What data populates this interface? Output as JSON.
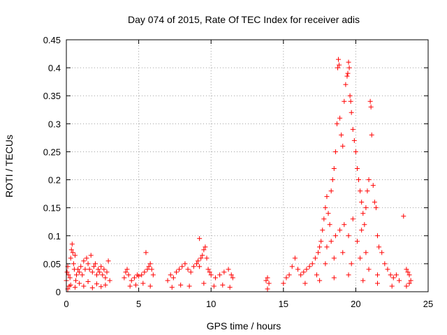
{
  "chart_data": {
    "type": "scatter",
    "title": "Day 074 of 2015, Rate Of TEC Index for receiver adis",
    "xlabel": "GPS time / hours",
    "ylabel": "ROTI / TECUs",
    "xlim": [
      0,
      25
    ],
    "ylim": [
      0,
      0.45
    ],
    "xticks": [
      0,
      5,
      10,
      15,
      20,
      25
    ],
    "xtick_labels": [
      "0",
      "5",
      "10",
      "15",
      "20",
      "25"
    ],
    "yticks": [
      0,
      0.05,
      0.1,
      0.15,
      0.2,
      0.25,
      0.3,
      0.35,
      0.4,
      0.45
    ],
    "ytick_labels": [
      "0",
      "0.05",
      "0.1",
      "0.15",
      "0.2",
      "0.25",
      "0.3",
      "0.35",
      "0.4",
      "0.45"
    ],
    "grid": true,
    "marker": "+",
    "marker_color": "#ff0000",
    "series": [
      {
        "name": "ROTI",
        "points": [
          [
            0.0,
            0.02
          ],
          [
            0.05,
            0.035
          ],
          [
            0.1,
            0.045
          ],
          [
            0.15,
            0.03
          ],
          [
            0.2,
            0.01
          ],
          [
            0.25,
            0.025
          ],
          [
            0.3,
            0.06
          ],
          [
            0.35,
            0.075
          ],
          [
            0.4,
            0.085
          ],
          [
            0.45,
            0.07
          ],
          [
            0.5,
            0.05
          ],
          [
            0.55,
            0.04
          ],
          [
            0.6,
            0.065
          ],
          [
            0.65,
            0.02
          ],
          [
            0.7,
            0.03
          ],
          [
            0.8,
            0.04
          ],
          [
            0.9,
            0.035
          ],
          [
            1.0,
            0.045
          ],
          [
            1.1,
            0.03
          ],
          [
            1.2,
            0.055
          ],
          [
            1.3,
            0.04
          ],
          [
            1.4,
            0.06
          ],
          [
            1.5,
            0.05
          ],
          [
            1.6,
            0.04
          ],
          [
            1.7,
            0.065
          ],
          [
            1.8,
            0.035
          ],
          [
            1.9,
            0.045
          ],
          [
            2.0,
            0.05
          ],
          [
            2.1,
            0.03
          ],
          [
            2.2,
            0.04
          ],
          [
            2.3,
            0.035
          ],
          [
            2.4,
            0.045
          ],
          [
            2.5,
            0.03
          ],
          [
            2.6,
            0.04
          ],
          [
            2.7,
            0.025
          ],
          [
            2.8,
            0.035
          ],
          [
            2.9,
            0.055
          ],
          [
            3.0,
            0.02
          ],
          [
            0.1,
            0.005
          ],
          [
            0.3,
            0.012
          ],
          [
            0.6,
            0.008
          ],
          [
            0.9,
            0.015
          ],
          [
            1.2,
            0.01
          ],
          [
            1.5,
            0.018
          ],
          [
            1.8,
            0.007
          ],
          [
            2.1,
            0.014
          ],
          [
            2.4,
            0.009
          ],
          [
            2.7,
            0.012
          ],
          [
            4.0,
            0.025
          ],
          [
            4.1,
            0.035
          ],
          [
            4.2,
            0.04
          ],
          [
            4.3,
            0.03
          ],
          [
            4.5,
            0.02
          ],
          [
            4.7,
            0.025
          ],
          [
            4.9,
            0.03
          ],
          [
            5.0,
            0.028
          ],
          [
            5.2,
            0.03
          ],
          [
            5.4,
            0.035
          ],
          [
            5.5,
            0.07
          ],
          [
            5.6,
            0.04
          ],
          [
            5.7,
            0.045
          ],
          [
            5.8,
            0.05
          ],
          [
            5.9,
            0.04
          ],
          [
            6.0,
            0.03
          ],
          [
            4.4,
            0.01
          ],
          [
            4.8,
            0.012
          ],
          [
            5.3,
            0.015
          ],
          [
            5.8,
            0.01
          ],
          [
            7.0,
            0.02
          ],
          [
            7.2,
            0.03
          ],
          [
            7.4,
            0.025
          ],
          [
            7.6,
            0.035
          ],
          [
            7.8,
            0.04
          ],
          [
            8.0,
            0.045
          ],
          [
            8.2,
            0.05
          ],
          [
            8.4,
            0.04
          ],
          [
            8.6,
            0.035
          ],
          [
            8.8,
            0.045
          ],
          [
            9.0,
            0.05
          ],
          [
            9.1,
            0.055
          ],
          [
            9.2,
            0.045
          ],
          [
            9.3,
            0.06
          ],
          [
            9.4,
            0.065
          ],
          [
            9.5,
            0.075
          ],
          [
            9.6,
            0.08
          ],
          [
            9.7,
            0.06
          ],
          [
            9.8,
            0.04
          ],
          [
            9.9,
            0.035
          ],
          [
            9.2,
            0.095
          ],
          [
            10.0,
            0.03
          ],
          [
            10.3,
            0.025
          ],
          [
            10.6,
            0.03
          ],
          [
            10.9,
            0.035
          ],
          [
            11.2,
            0.04
          ],
          [
            11.4,
            0.03
          ],
          [
            11.5,
            0.025
          ],
          [
            7.3,
            0.008
          ],
          [
            7.9,
            0.012
          ],
          [
            8.5,
            0.01
          ],
          [
            9.5,
            0.015
          ],
          [
            10.2,
            0.01
          ],
          [
            10.8,
            0.012
          ],
          [
            11.3,
            0.008
          ],
          [
            13.8,
            0.02
          ],
          [
            13.9,
            0.025
          ],
          [
            14.0,
            0.015
          ],
          [
            13.9,
            0.005
          ],
          [
            15.0,
            0.015
          ],
          [
            15.2,
            0.025
          ],
          [
            15.4,
            0.03
          ],
          [
            15.6,
            0.045
          ],
          [
            15.8,
            0.06
          ],
          [
            16.0,
            0.04
          ],
          [
            16.2,
            0.03
          ],
          [
            16.4,
            0.035
          ],
          [
            16.6,
            0.04
          ],
          [
            16.8,
            0.045
          ],
          [
            17.0,
            0.05
          ],
          [
            17.2,
            0.06
          ],
          [
            17.4,
            0.07
          ],
          [
            17.5,
            0.08
          ],
          [
            17.6,
            0.09
          ],
          [
            17.7,
            0.11
          ],
          [
            17.8,
            0.13
          ],
          [
            17.9,
            0.15
          ],
          [
            18.0,
            0.17
          ],
          [
            18.1,
            0.14
          ],
          [
            18.2,
            0.12
          ],
          [
            18.3,
            0.18
          ],
          [
            18.4,
            0.2
          ],
          [
            18.5,
            0.22
          ],
          [
            18.6,
            0.25
          ],
          [
            18.7,
            0.3
          ],
          [
            18.75,
            0.4
          ],
          [
            18.8,
            0.415
          ],
          [
            18.85,
            0.405
          ],
          [
            18.9,
            0.31
          ],
          [
            19.0,
            0.28
          ],
          [
            19.1,
            0.26
          ],
          [
            19.2,
            0.34
          ],
          [
            19.3,
            0.37
          ],
          [
            19.4,
            0.385
          ],
          [
            19.45,
            0.39
          ],
          [
            19.5,
            0.41
          ],
          [
            19.55,
            0.4
          ],
          [
            19.6,
            0.35
          ],
          [
            19.65,
            0.34
          ],
          [
            19.7,
            0.32
          ],
          [
            19.8,
            0.29
          ],
          [
            19.9,
            0.27
          ],
          [
            20.0,
            0.25
          ],
          [
            20.1,
            0.22
          ],
          [
            20.2,
            0.2
          ],
          [
            20.3,
            0.18
          ],
          [
            20.4,
            0.16
          ],
          [
            20.5,
            0.14
          ],
          [
            20.6,
            0.12
          ],
          [
            20.7,
            0.15
          ],
          [
            20.8,
            0.18
          ],
          [
            20.9,
            0.2
          ],
          [
            21.0,
            0.34
          ],
          [
            21.05,
            0.33
          ],
          [
            21.1,
            0.28
          ],
          [
            21.2,
            0.19
          ],
          [
            21.3,
            0.16
          ],
          [
            21.4,
            0.15
          ],
          [
            21.5,
            0.1
          ],
          [
            21.6,
            0.08
          ],
          [
            21.8,
            0.07
          ],
          [
            22.0,
            0.05
          ],
          [
            22.2,
            0.04
          ],
          [
            22.4,
            0.03
          ],
          [
            22.6,
            0.025
          ],
          [
            22.8,
            0.03
          ],
          [
            23.0,
            0.02
          ],
          [
            18.0,
            0.08
          ],
          [
            18.3,
            0.09
          ],
          [
            18.6,
            0.1
          ],
          [
            18.9,
            0.11
          ],
          [
            19.2,
            0.12
          ],
          [
            19.5,
            0.1
          ],
          [
            19.8,
            0.13
          ],
          [
            20.1,
            0.09
          ],
          [
            20.4,
            0.11
          ],
          [
            20.7,
            0.07
          ],
          [
            17.3,
            0.03
          ],
          [
            17.9,
            0.05
          ],
          [
            18.5,
            0.06
          ],
          [
            19.1,
            0.07
          ],
          [
            19.7,
            0.05
          ],
          [
            20.3,
            0.06
          ],
          [
            20.9,
            0.04
          ],
          [
            21.5,
            0.03
          ],
          [
            16.5,
            0.015
          ],
          [
            17.5,
            0.02
          ],
          [
            18.5,
            0.025
          ],
          [
            19.5,
            0.03
          ],
          [
            20.5,
            0.02
          ],
          [
            21.5,
            0.015
          ],
          [
            22.5,
            0.01
          ],
          [
            23.3,
            0.135
          ],
          [
            23.5,
            0.04
          ],
          [
            23.6,
            0.035
          ],
          [
            23.7,
            0.03
          ],
          [
            23.8,
            0.02
          ],
          [
            23.5,
            0.01
          ],
          [
            23.7,
            0.015
          ]
        ]
      }
    ]
  }
}
